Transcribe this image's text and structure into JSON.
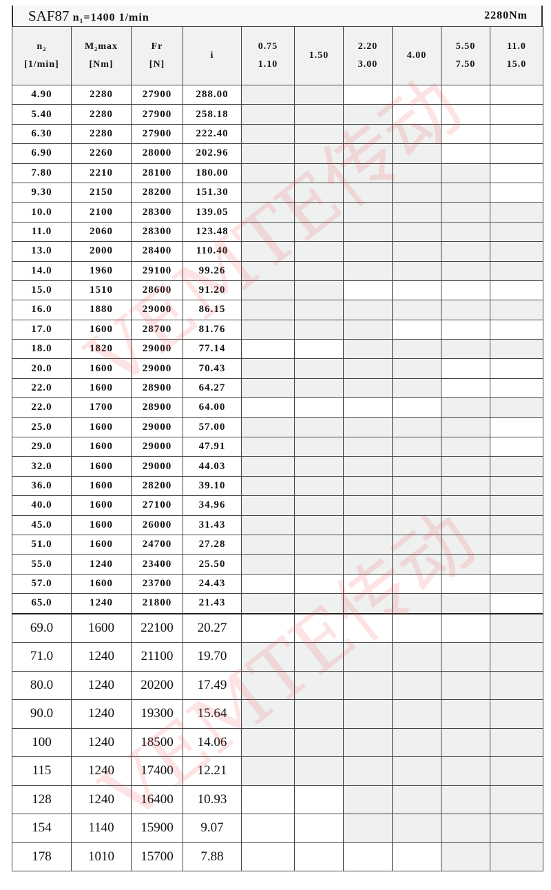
{
  "header": {
    "model": "SAF87",
    "input_speed": "n₁=1400 1/min",
    "max_torque": "2280Nm"
  },
  "columns": [
    {
      "line1": "n₂",
      "line2": "[1/min]"
    },
    {
      "line1": "M₂max",
      "line2": "[Nm]"
    },
    {
      "line1": "Fr",
      "line2": "[N]"
    },
    {
      "line1": "i",
      "line2": ""
    },
    {
      "line1": "0.75",
      "line2": "1.10"
    },
    {
      "line1": "1.50",
      "line2": ""
    },
    {
      "line1": "2.20",
      "line2": "3.00"
    },
    {
      "line1": "4.00",
      "line2": ""
    },
    {
      "line1": "5.50",
      "line2": "7.50"
    },
    {
      "line1": "11.0",
      "line2": "15.0"
    }
  ],
  "rows": [
    {
      "n2": "4.90",
      "m2": "2280",
      "fr": "27900",
      "i": "288.00",
      "shade": "GGWWWW"
    },
    {
      "n2": "5.40",
      "m2": "2280",
      "fr": "27900",
      "i": "258.18",
      "shade": "GGGWWW"
    },
    {
      "n2": "6.30",
      "m2": "2280",
      "fr": "27900",
      "i": "222.40",
      "shade": "GGGGWW"
    },
    {
      "n2": "6.90",
      "m2": "2260",
      "fr": "28000",
      "i": "202.96",
      "shade": "GGGGWW"
    },
    {
      "n2": "7.80",
      "m2": "2210",
      "fr": "28100",
      "i": "180.00",
      "shade": "GGGGGW"
    },
    {
      "n2": "9.30",
      "m2": "2150",
      "fr": "28200",
      "i": "151.30",
      "shade": "GGGGGW"
    },
    {
      "n2": "10.0",
      "m2": "2100",
      "fr": "28300",
      "i": "139.05",
      "shade": "GGGGGG"
    },
    {
      "n2": "11.0",
      "m2": "2060",
      "fr": "28300",
      "i": "123.48",
      "shade": "GGGGGG"
    },
    {
      "n2": "13.0",
      "m2": "2000",
      "fr": "28400",
      "i": "110.40",
      "shade": "GGGGGG"
    },
    {
      "n2": "14.0",
      "m2": "1960",
      "fr": "29100",
      "i": "99.26",
      "shade": "GGGGGG"
    },
    {
      "n2": "15.0",
      "m2": "1510",
      "fr": "28600",
      "i": "91.20",
      "shade": "GGWWWW"
    },
    {
      "n2": "16.0",
      "m2": "1880",
      "fr": "29000",
      "i": "86.15",
      "shade": "GGGGGG"
    },
    {
      "n2": "17.0",
      "m2": "1600",
      "fr": "28700",
      "i": "81.76",
      "shade": "GGGWWW"
    },
    {
      "n2": "18.0",
      "m2": "1820",
      "fr": "29000",
      "i": "77.14",
      "shade": "WWGGGG"
    },
    {
      "n2": "20.0",
      "m2": "1600",
      "fr": "29000",
      "i": "70.43",
      "shade": "GGGGWW"
    },
    {
      "n2": "22.0",
      "m2": "1600",
      "fr": "28900",
      "i": "64.27",
      "shade": "GGGGWW"
    },
    {
      "n2": "22.0",
      "m2": "1700",
      "fr": "28900",
      "i": "64.00",
      "shade": "WWWWGG"
    },
    {
      "n2": "25.0",
      "m2": "1600",
      "fr": "29000",
      "i": "57.00",
      "shade": "GGGGGW"
    },
    {
      "n2": "29.0",
      "m2": "1600",
      "fr": "29000",
      "i": "47.91",
      "shade": "GGGGGW"
    },
    {
      "n2": "32.0",
      "m2": "1600",
      "fr": "29000",
      "i": "44.03",
      "shade": "GGGGGG"
    },
    {
      "n2": "36.0",
      "m2": "1600",
      "fr": "28200",
      "i": "39.10",
      "shade": "GGGGGG"
    },
    {
      "n2": "40.0",
      "m2": "1600",
      "fr": "27100",
      "i": "34.96",
      "shade": "GGGGGG"
    },
    {
      "n2": "45.0",
      "m2": "1600",
      "fr": "26000",
      "i": "31.43",
      "shade": "GGGGGG"
    },
    {
      "n2": "51.0",
      "m2": "1600",
      "fr": "24700",
      "i": "27.28",
      "shade": "GGGGGG"
    },
    {
      "n2": "55.0",
      "m2": "1240",
      "fr": "23400",
      "i": "25.50",
      "shade": "GGGGGW"
    },
    {
      "n2": "57.0",
      "m2": "1600",
      "fr": "23700",
      "i": "24.43",
      "shade": "WWWWWG"
    },
    {
      "n2": "65.0",
      "m2": "1240",
      "fr": "21800",
      "i": "21.43",
      "shade": "GGGGGW"
    },
    {
      "n2": "69.0",
      "m2": "1600",
      "fr": "22100",
      "i": "20.27",
      "shade": "WWWWWG",
      "large": true
    },
    {
      "n2": "71.0",
      "m2": "1240",
      "fr": "21100",
      "i": "19.70",
      "shade": "GGGGGG",
      "large": true
    },
    {
      "n2": "80.0",
      "m2": "1240",
      "fr": "20200",
      "i": "17.49",
      "shade": "GGGGGG",
      "large": true
    },
    {
      "n2": "90.0",
      "m2": "1240",
      "fr": "19300",
      "i": "15.64",
      "shade": "GGGGGG",
      "large": true
    },
    {
      "n2": "100",
      "m2": "1240",
      "fr": "18500",
      "i": "14.06",
      "shade": "GGGGGG",
      "large": true
    },
    {
      "n2": "115",
      "m2": "1240",
      "fr": "17400",
      "i": "12.21",
      "shade": "GGGGGG",
      "large": true
    },
    {
      "n2": "128",
      "m2": "1240",
      "fr": "16400",
      "i": "10.93",
      "shade": "WWGGGG",
      "large": true
    },
    {
      "n2": "154",
      "m2": "1140",
      "fr": "15900",
      "i": "9.07",
      "shade": "WWGGGG",
      "large": true
    },
    {
      "n2": "178",
      "m2": "1010",
      "fr": "15700",
      "i": "7.88",
      "shade": "WWWWGG",
      "large": true
    }
  ],
  "colors": {
    "shaded_cell": "#eff1f1",
    "grid": "#444444",
    "watermark": "#f05050"
  },
  "watermark": "VEMTE传动"
}
